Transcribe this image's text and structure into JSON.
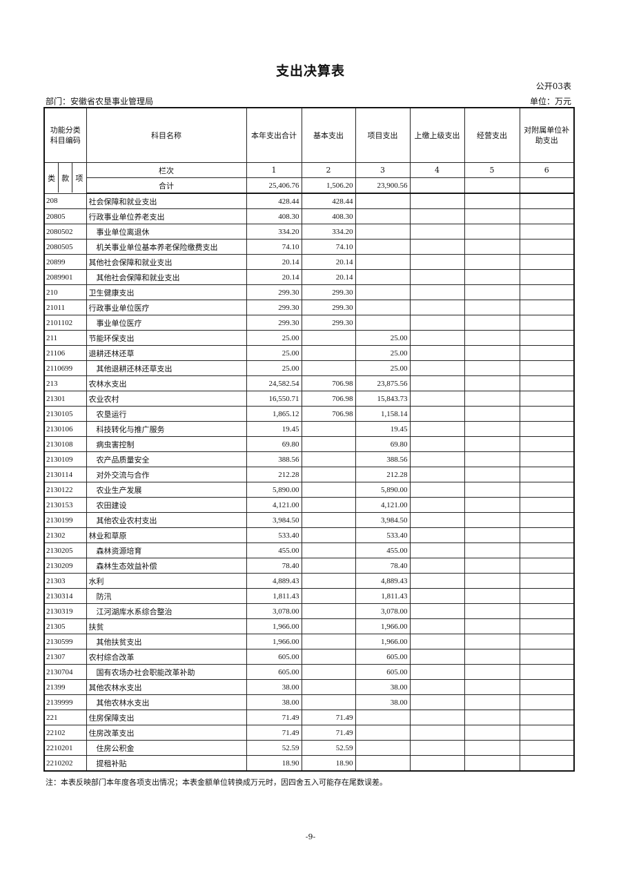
{
  "title": "支出决算表",
  "form_no": "公开03表",
  "department": "部门：安徽省农垦事业管理局",
  "unit": "单位：万元",
  "headers": {
    "code": "功能分类科目编码",
    "name": "科目名称",
    "cols": [
      "本年支出合计",
      "基本支出",
      "项目支出",
      "上缴上级支出",
      "经营支出",
      "对附属单位补助支出"
    ],
    "sub": [
      "类",
      "款",
      "项"
    ],
    "col_index_label": "栏次",
    "col_index": [
      "1",
      "2",
      "3",
      "4",
      "5",
      "6"
    ]
  },
  "total": {
    "label": "合计",
    "values": [
      "25,406.76",
      "1,506.20",
      "23,900.56",
      "",
      "",
      ""
    ]
  },
  "rows": [
    {
      "code": "208",
      "name": "社会保障和就业支出",
      "values": [
        "428.44",
        "428.44",
        "",
        "",
        "",
        ""
      ]
    },
    {
      "code": "20805",
      "name": "行政事业单位养老支出",
      "values": [
        "408.30",
        "408.30",
        "",
        "",
        "",
        ""
      ]
    },
    {
      "code": "2080502",
      "name": "事业单位离退休",
      "values": [
        "334.20",
        "334.20",
        "",
        "",
        "",
        ""
      ]
    },
    {
      "code": "2080505",
      "name": "机关事业单位基本养老保险缴费支出",
      "values": [
        "74.10",
        "74.10",
        "",
        "",
        "",
        ""
      ]
    },
    {
      "code": "20899",
      "name": "其他社会保障和就业支出",
      "values": [
        "20.14",
        "20.14",
        "",
        "",
        "",
        ""
      ]
    },
    {
      "code": "2089901",
      "name": "其他社会保障和就业支出",
      "values": [
        "20.14",
        "20.14",
        "",
        "",
        "",
        ""
      ]
    },
    {
      "code": "210",
      "name": "卫生健康支出",
      "values": [
        "299.30",
        "299.30",
        "",
        "",
        "",
        ""
      ]
    },
    {
      "code": "21011",
      "name": "行政事业单位医疗",
      "values": [
        "299.30",
        "299.30",
        "",
        "",
        "",
        ""
      ]
    },
    {
      "code": "2101102",
      "name": "事业单位医疗",
      "values": [
        "299.30",
        "299.30",
        "",
        "",
        "",
        ""
      ]
    },
    {
      "code": "211",
      "name": "节能环保支出",
      "values": [
        "25.00",
        "",
        "25.00",
        "",
        "",
        ""
      ]
    },
    {
      "code": "21106",
      "name": "退耕还林还草",
      "values": [
        "25.00",
        "",
        "25.00",
        "",
        "",
        ""
      ]
    },
    {
      "code": "2110699",
      "name": "其他退耕还林还草支出",
      "values": [
        "25.00",
        "",
        "25.00",
        "",
        "",
        ""
      ]
    },
    {
      "code": "213",
      "name": "农林水支出",
      "values": [
        "24,582.54",
        "706.98",
        "23,875.56",
        "",
        "",
        ""
      ]
    },
    {
      "code": "21301",
      "name": "农业农村",
      "values": [
        "16,550.71",
        "706.98",
        "15,843.73",
        "",
        "",
        ""
      ]
    },
    {
      "code": "2130105",
      "name": "农垦运行",
      "values": [
        "1,865.12",
        "706.98",
        "1,158.14",
        "",
        "",
        ""
      ]
    },
    {
      "code": "2130106",
      "name": "科技转化与推广服务",
      "values": [
        "19.45",
        "",
        "19.45",
        "",
        "",
        ""
      ]
    },
    {
      "code": "2130108",
      "name": "病虫害控制",
      "values": [
        "69.80",
        "",
        "69.80",
        "",
        "",
        ""
      ]
    },
    {
      "code": "2130109",
      "name": "农产品质量安全",
      "values": [
        "388.56",
        "",
        "388.56",
        "",
        "",
        ""
      ]
    },
    {
      "code": "2130114",
      "name": "对外交流与合作",
      "values": [
        "212.28",
        "",
        "212.28",
        "",
        "",
        ""
      ]
    },
    {
      "code": "2130122",
      "name": "农业生产发展",
      "values": [
        "5,890.00",
        "",
        "5,890.00",
        "",
        "",
        ""
      ]
    },
    {
      "code": "2130153",
      "name": "农田建设",
      "values": [
        "4,121.00",
        "",
        "4,121.00",
        "",
        "",
        ""
      ]
    },
    {
      "code": "2130199",
      "name": "其他农业农村支出",
      "values": [
        "3,984.50",
        "",
        "3,984.50",
        "",
        "",
        ""
      ]
    },
    {
      "code": "21302",
      "name": "林业和草原",
      "values": [
        "533.40",
        "",
        "533.40",
        "",
        "",
        ""
      ]
    },
    {
      "code": "2130205",
      "name": "森林资源培育",
      "values": [
        "455.00",
        "",
        "455.00",
        "",
        "",
        ""
      ]
    },
    {
      "code": "2130209",
      "name": "森林生态效益补偿",
      "values": [
        "78.40",
        "",
        "78.40",
        "",
        "",
        ""
      ]
    },
    {
      "code": "21303",
      "name": "水利",
      "values": [
        "4,889.43",
        "",
        "4,889.43",
        "",
        "",
        ""
      ]
    },
    {
      "code": "2130314",
      "name": "防汛",
      "values": [
        "1,811.43",
        "",
        "1,811.43",
        "",
        "",
        ""
      ]
    },
    {
      "code": "2130319",
      "name": "江河湖库水系综合整治",
      "values": [
        "3,078.00",
        "",
        "3,078.00",
        "",
        "",
        ""
      ]
    },
    {
      "code": "21305",
      "name": "扶贫",
      "values": [
        "1,966.00",
        "",
        "1,966.00",
        "",
        "",
        ""
      ]
    },
    {
      "code": "2130599",
      "name": "其他扶贫支出",
      "values": [
        "1,966.00",
        "",
        "1,966.00",
        "",
        "",
        ""
      ]
    },
    {
      "code": "21307",
      "name": "农村综合改革",
      "values": [
        "605.00",
        "",
        "605.00",
        "",
        "",
        ""
      ]
    },
    {
      "code": "2130704",
      "name": "国有农场办社会职能改革补助",
      "values": [
        "605.00",
        "",
        "605.00",
        "",
        "",
        ""
      ]
    },
    {
      "code": "21399",
      "name": "其他农林水支出",
      "values": [
        "38.00",
        "",
        "38.00",
        "",
        "",
        ""
      ]
    },
    {
      "code": "2139999",
      "name": "其他农林水支出",
      "values": [
        "38.00",
        "",
        "38.00",
        "",
        "",
        ""
      ]
    },
    {
      "code": "221",
      "name": "住房保障支出",
      "values": [
        "71.49",
        "71.49",
        "",
        "",
        "",
        ""
      ]
    },
    {
      "code": "22102",
      "name": "住房改革支出",
      "values": [
        "71.49",
        "71.49",
        "",
        "",
        "",
        ""
      ]
    },
    {
      "code": "2210201",
      "name": "住房公积金",
      "values": [
        "52.59",
        "52.59",
        "",
        "",
        "",
        ""
      ]
    },
    {
      "code": "2210202",
      "name": "提租补贴",
      "values": [
        "18.90",
        "18.90",
        "",
        "",
        "",
        ""
      ]
    }
  ],
  "note": "注：本表反映部门本年度各项支出情况；本表金额单位转换成万元时，因四舍五入可能存在尾数误差。",
  "page_number": "-9-"
}
